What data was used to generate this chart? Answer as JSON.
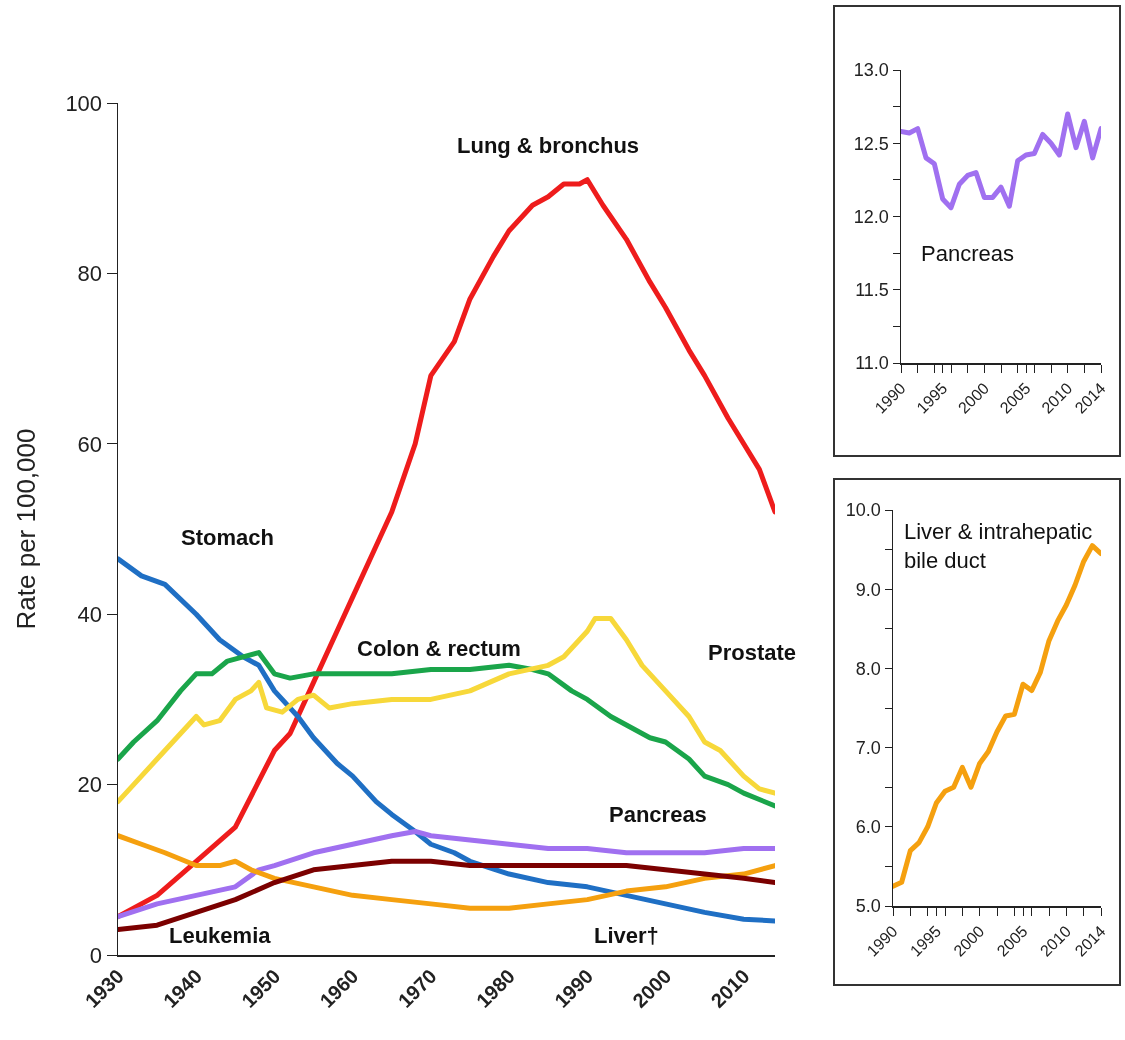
{
  "chart_data": [
    {
      "type": "line",
      "ylabel": "Rate per 100,000",
      "xlim": [
        1930,
        2014
      ],
      "xticks": [
        1930,
        1940,
        1950,
        1960,
        1970,
        1980,
        1990,
        2000,
        2010
      ],
      "ylim": [
        0,
        100
      ],
      "yticks": [
        0,
        20,
        40,
        60,
        80,
        100
      ],
      "grid": false,
      "legend": false,
      "series": [
        {
          "name": "Lung & bronchus",
          "color": "#ee1c1c",
          "x": [
            1930,
            1935,
            1940,
            1945,
            1950,
            1952,
            1955,
            1958,
            1960,
            1963,
            1965,
            1968,
            1970,
            1973,
            1975,
            1978,
            1980,
            1983,
            1985,
            1987,
            1989,
            1990,
            1992,
            1995,
            1998,
            2000,
            2003,
            2005,
            2008,
            2010,
            2012,
            2014
          ],
          "values": [
            4.5,
            7,
            11,
            15,
            24,
            26,
            32,
            38,
            42,
            48,
            52,
            60,
            68,
            72,
            77,
            82,
            85,
            88,
            89,
            90.5,
            90.5,
            91,
            88,
            84,
            79,
            76,
            71,
            68,
            63,
            60,
            57,
            52
          ]
        },
        {
          "name": "Stomach",
          "color": "#1f6fc4",
          "x": [
            1930,
            1933,
            1936,
            1940,
            1943,
            1946,
            1948,
            1950,
            1953,
            1955,
            1958,
            1960,
            1963,
            1965,
            1968,
            1970,
            1973,
            1975,
            1980,
            1985,
            1990,
            1995,
            2000,
            2005,
            2010,
            2014
          ],
          "values": [
            46.5,
            44.5,
            43.5,
            40,
            37,
            35,
            34,
            31,
            28,
            25.5,
            22.5,
            21,
            18,
            16.5,
            14.5,
            13,
            12,
            11,
            9.5,
            8.5,
            8,
            7,
            6,
            5,
            4.2,
            4
          ]
        },
        {
          "name": "Colon & rectum",
          "color": "#1aa54a",
          "x": [
            1930,
            1932,
            1935,
            1938,
            1940,
            1942,
            1944,
            1946,
            1948,
            1950,
            1952,
            1955,
            1960,
            1965,
            1970,
            1975,
            1980,
            1983,
            1985,
            1988,
            1990,
            1993,
            1995,
            1998,
            2000,
            2003,
            2005,
            2008,
            2010,
            2014
          ],
          "values": [
            23,
            25,
            27.5,
            31,
            33,
            33,
            34.5,
            35,
            35.5,
            33,
            32.5,
            33,
            33,
            33,
            33.5,
            33.5,
            34,
            33.5,
            33,
            31,
            30,
            28,
            27,
            25.5,
            25,
            23,
            21,
            20,
            19,
            17.5
          ]
        },
        {
          "name": "Prostate",
          "color": "#f7d83a",
          "x": [
            1930,
            1932,
            1935,
            1938,
            1940,
            1941,
            1943,
            1945,
            1947,
            1948,
            1949,
            1951,
            1953,
            1955,
            1957,
            1960,
            1965,
            1970,
            1975,
            1980,
            1985,
            1987,
            1990,
            1991,
            1993,
            1995,
            1997,
            2000,
            2003,
            2005,
            2007,
            2010,
            2012,
            2014
          ],
          "values": [
            18,
            20,
            23,
            26,
            28,
            27,
            27.5,
            30,
            31,
            32,
            29,
            28.5,
            30,
            30.5,
            29,
            29.5,
            30,
            30,
            31,
            33,
            34,
            35,
            38,
            39.5,
            39.5,
            37,
            34,
            31,
            28,
            25,
            24,
            21,
            19.5,
            19
          ]
        },
        {
          "name": "Pancreas",
          "color": "#a070f0",
          "x": [
            1930,
            1935,
            1940,
            1945,
            1948,
            1950,
            1955,
            1960,
            1965,
            1968,
            1970,
            1975,
            1980,
            1985,
            1990,
            1995,
            2000,
            2005,
            2010,
            2014
          ],
          "values": [
            4.5,
            6,
            7,
            8,
            10,
            10.5,
            12,
            13,
            14,
            14.5,
            14,
            13.5,
            13,
            12.5,
            12.5,
            12,
            12,
            12,
            12.5,
            12.5
          ]
        },
        {
          "name": "Liver†",
          "color": "#f5a00f",
          "x": [
            1930,
            1933,
            1936,
            1940,
            1943,
            1945,
            1947,
            1950,
            1955,
            1960,
            1965,
            1970,
            1975,
            1980,
            1985,
            1990,
            1995,
            2000,
            2005,
            2010,
            2014
          ],
          "values": [
            14,
            13,
            12,
            10.5,
            10.5,
            11,
            10,
            9,
            8,
            7,
            6.5,
            6,
            5.5,
            5.5,
            6,
            6.5,
            7.5,
            8,
            9,
            9.5,
            10.5
          ]
        },
        {
          "name": "Leukemia",
          "color": "#7b0000",
          "x": [
            1930,
            1935,
            1940,
            1945,
            1950,
            1955,
            1960,
            1965,
            1970,
            1975,
            1980,
            1985,
            1990,
            1995,
            2000,
            2005,
            2010,
            2014
          ],
          "values": [
            3,
            3.5,
            5,
            6.5,
            8.5,
            10,
            10.5,
            11,
            11,
            10.5,
            10.5,
            10.5,
            10.5,
            10.5,
            10,
            9.5,
            9,
            8.5
          ]
        }
      ]
    },
    {
      "type": "line",
      "xlim": [
        1990,
        2014
      ],
      "xticks": [
        1990,
        {
          "value": 1992,
          "label": null
        },
        {
          "value": 1994,
          "label": null
        },
        1995,
        {
          "value": 1996,
          "label": null
        },
        {
          "value": 1998,
          "label": null
        },
        2000,
        {
          "value": 2002,
          "label": null
        },
        {
          "value": 2004,
          "label": null
        },
        2005,
        {
          "value": 2006,
          "label": null
        },
        {
          "value": 2008,
          "label": null
        },
        2010,
        {
          "value": 2012,
          "label": null
        },
        2014
      ],
      "ylim": [
        11,
        13
      ],
      "yticks": [
        {
          "value": 11,
          "label": "11.0"
        },
        {
          "value": 11.25,
          "label": null
        },
        11.5,
        {
          "value": 11.75,
          "label": null
        },
        {
          "value": 12,
          "label": "12.0"
        },
        {
          "value": 12.25,
          "label": null
        },
        12.5,
        {
          "value": 12.75,
          "label": null
        },
        {
          "value": 13,
          "label": "13.0"
        }
      ],
      "grid": false,
      "legend": false,
      "series": [
        {
          "name": "Pancreas",
          "color": "#a070f0",
          "x": [
            1990,
            1991,
            1992,
            1993,
            1994,
            1995,
            1996,
            1997,
            1998,
            1999,
            2000,
            2001,
            2002,
            2003,
            2004,
            2005,
            2006,
            2007,
            2008,
            2009,
            2010,
            2011,
            2012,
            2013,
            2014
          ],
          "values": [
            12.58,
            12.57,
            12.6,
            12.4,
            12.36,
            12.12,
            12.06,
            12.22,
            12.28,
            12.3,
            12.13,
            12.13,
            12.2,
            12.07,
            12.38,
            12.42,
            12.43,
            12.56,
            12.5,
            12.42,
            12.7,
            12.47,
            12.65,
            12.4,
            12.6
          ]
        }
      ]
    },
    {
      "type": "line",
      "xlim": [
        1990,
        2014
      ],
      "xticks": [
        1990,
        {
          "value": 1992,
          "label": null
        },
        {
          "value": 1994,
          "label": null
        },
        1995,
        {
          "value": 1996,
          "label": null
        },
        {
          "value": 1998,
          "label": null
        },
        2000,
        {
          "value": 2002,
          "label": null
        },
        {
          "value": 2004,
          "label": null
        },
        2005,
        {
          "value": 2006,
          "label": null
        },
        {
          "value": 2008,
          "label": null
        },
        2010,
        {
          "value": 2012,
          "label": null
        },
        2014
      ],
      "ylim": [
        5,
        10
      ],
      "yticks": [
        {
          "value": 5,
          "label": "5.0"
        },
        {
          "value": 5.5,
          "label": null
        },
        {
          "value": 6,
          "label": "6.0"
        },
        {
          "value": 6.5,
          "label": null
        },
        {
          "value": 7,
          "label": "7.0"
        },
        {
          "value": 7.5,
          "label": null
        },
        {
          "value": 8,
          "label": "8.0"
        },
        {
          "value": 8.5,
          "label": null
        },
        {
          "value": 9,
          "label": "9.0"
        },
        {
          "value": 9.5,
          "label": null
        },
        {
          "value": 10,
          "label": "10.0"
        }
      ],
      "grid": false,
      "legend": false,
      "series": [
        {
          "name": "Liver & intrahepatic\nbile duct",
          "color": "#f5a00f",
          "x": [
            1990,
            1991,
            1992,
            1993,
            1994,
            1995,
            1996,
            1997,
            1998,
            1999,
            2000,
            2001,
            2002,
            2003,
            2004,
            2005,
            2006,
            2007,
            2008,
            2009,
            2010,
            2011,
            2012,
            2013,
            2014
          ],
          "values": [
            5.25,
            5.3,
            5.7,
            5.8,
            6.0,
            6.3,
            6.45,
            6.5,
            6.75,
            6.5,
            6.8,
            6.95,
            7.2,
            7.4,
            7.42,
            7.8,
            7.72,
            7.95,
            8.35,
            8.6,
            8.8,
            9.05,
            9.35,
            9.55,
            9.45
          ]
        }
      ]
    }
  ]
}
